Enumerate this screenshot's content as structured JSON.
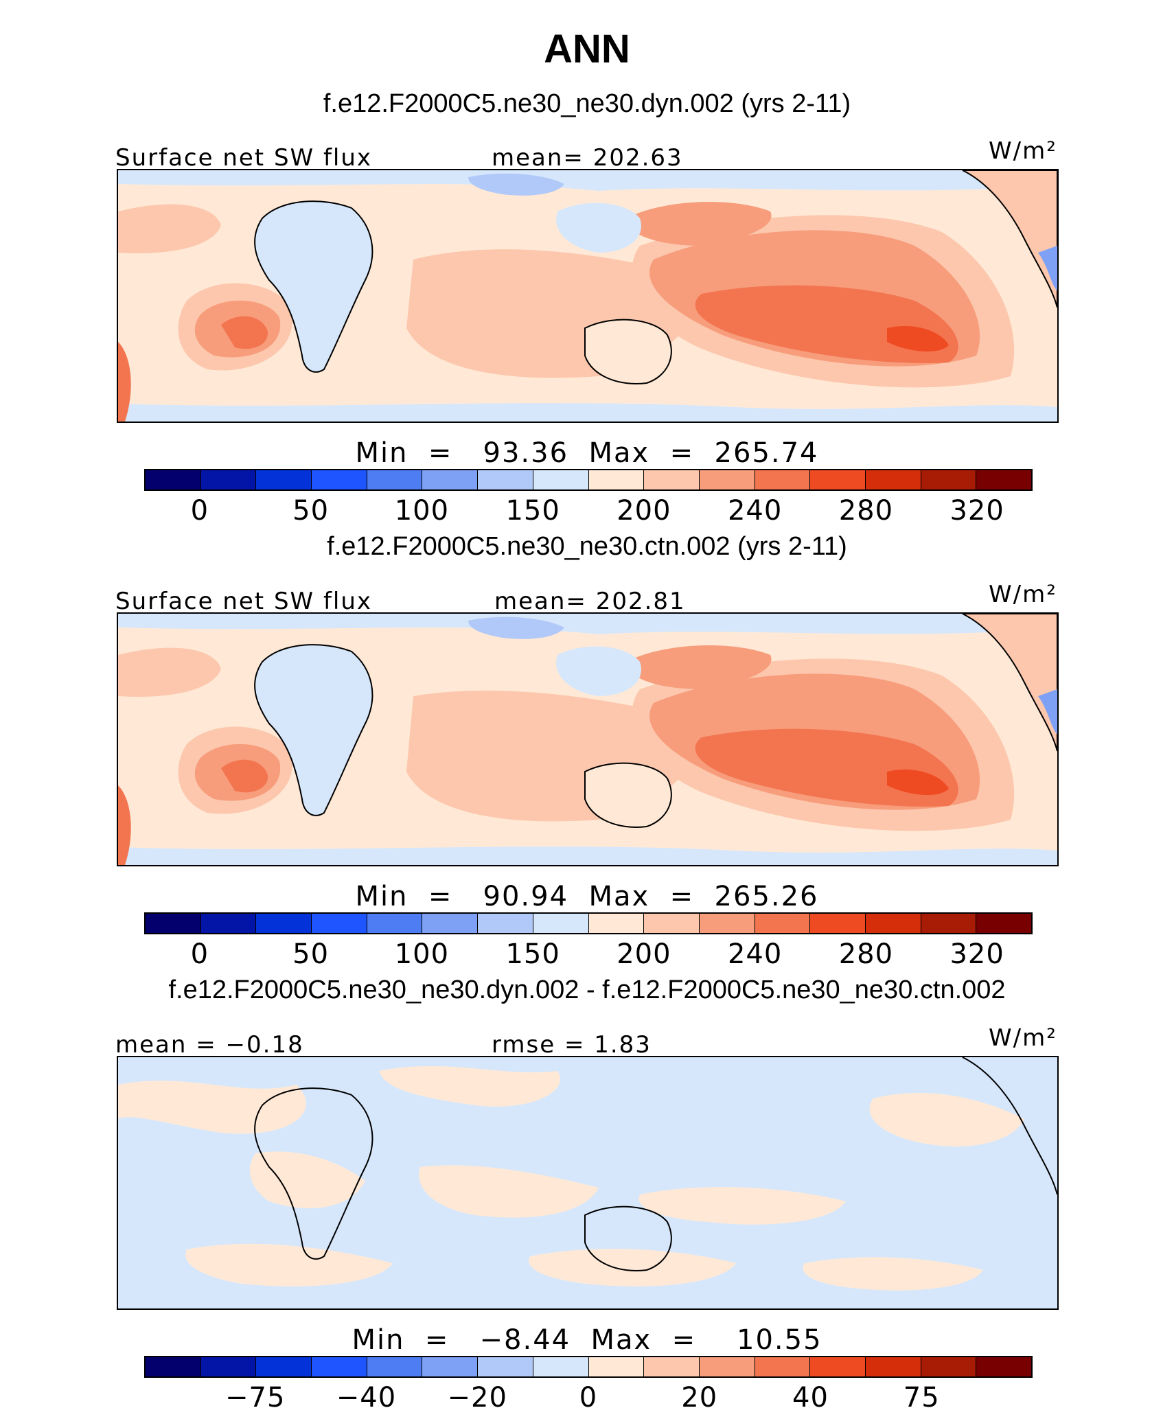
{
  "title": "ANN",
  "units": "W/m²",
  "colorbar_colors": [
    "#03006d",
    "#0215a6",
    "#0332d9",
    "#1f55ff",
    "#4d7cf3",
    "#7ea1f5",
    "#b0c9f8",
    "#d6e7fb",
    "#ffe9d6",
    "#fcc7ad",
    "#f79d7c",
    "#f37550",
    "#ef4b23",
    "#d42e0a",
    "#a81b05",
    "#780000"
  ],
  "panels": [
    {
      "case": "f.e12.F2000C5.ne30_ne30.dyn.002 (yrs 2-11)",
      "left_label": "Surface net SW flux",
      "center_label": "mean=  202.63",
      "stats": "Min  =   93.36  Max  =  265.74",
      "ticks": [
        "0",
        "50",
        "100",
        "150",
        "200",
        "240",
        "280",
        "320"
      ]
    },
    {
      "case": "f.e12.F2000C5.ne30_ne30.ctn.002 (yrs 2-11)",
      "left_label": "Surface net SW flux",
      "center_label": "mean=  202.81",
      "stats": "Min  =   90.94  Max  =  265.26",
      "ticks": [
        "0",
        "50",
        "100",
        "150",
        "200",
        "240",
        "280",
        "320"
      ]
    },
    {
      "case": "f.e12.F2000C5.ne30_ne30.dyn.002 - f.e12.F2000C5.ne30_ne30.ctn.002",
      "left_label": "mean  =  −0.18",
      "center_label": "rmse  =    1.83",
      "stats": "Min  =   −8.44  Max  =    10.55",
      "ticks": [
        "−75",
        "−40",
        "−20",
        "0",
        "20",
        "40",
        "75"
      ]
    }
  ]
}
